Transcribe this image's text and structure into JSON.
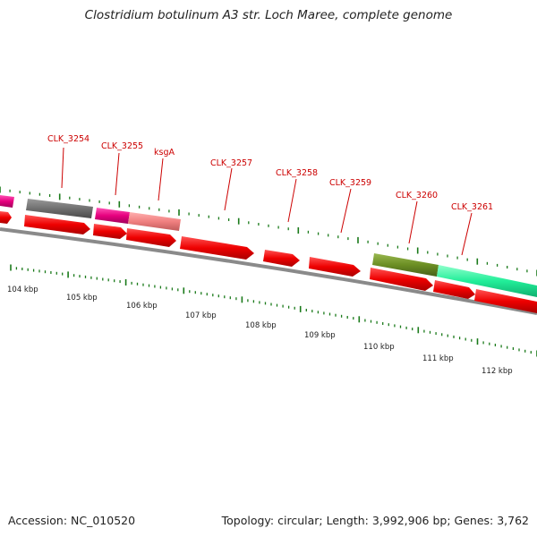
{
  "title": "Clostridium botulinum A3 str. Loch Maree, complete genome",
  "accession_text": "Accession: NC_010520",
  "stats_text": "Topology: circular; Length: 3,992,906 bp; Genes: 3,762",
  "colors": {
    "gene_label": "#cc0000",
    "forward_feature": "#ff0000",
    "tick_green": "#1a7a1a",
    "backbone": "#8a8a8a"
  },
  "gene_labels": [
    "CLK_3254",
    "CLK_3255",
    "ksgA",
    "CLK_3257",
    "CLK_3258",
    "CLK_3259",
    "CLK_3260",
    "CLK_3261"
  ],
  "scale_labels": [
    "104 kbp",
    "105 kbp",
    "106 kbp",
    "107 kbp",
    "108 kbp",
    "109 kbp",
    "110 kbp",
    "111 kbp",
    "112 kbp"
  ],
  "feature_colors": [
    "#e6007e",
    "#707070",
    "#e6007e",
    "#f08080",
    "#6b8e23",
    "#22ee99"
  ]
}
